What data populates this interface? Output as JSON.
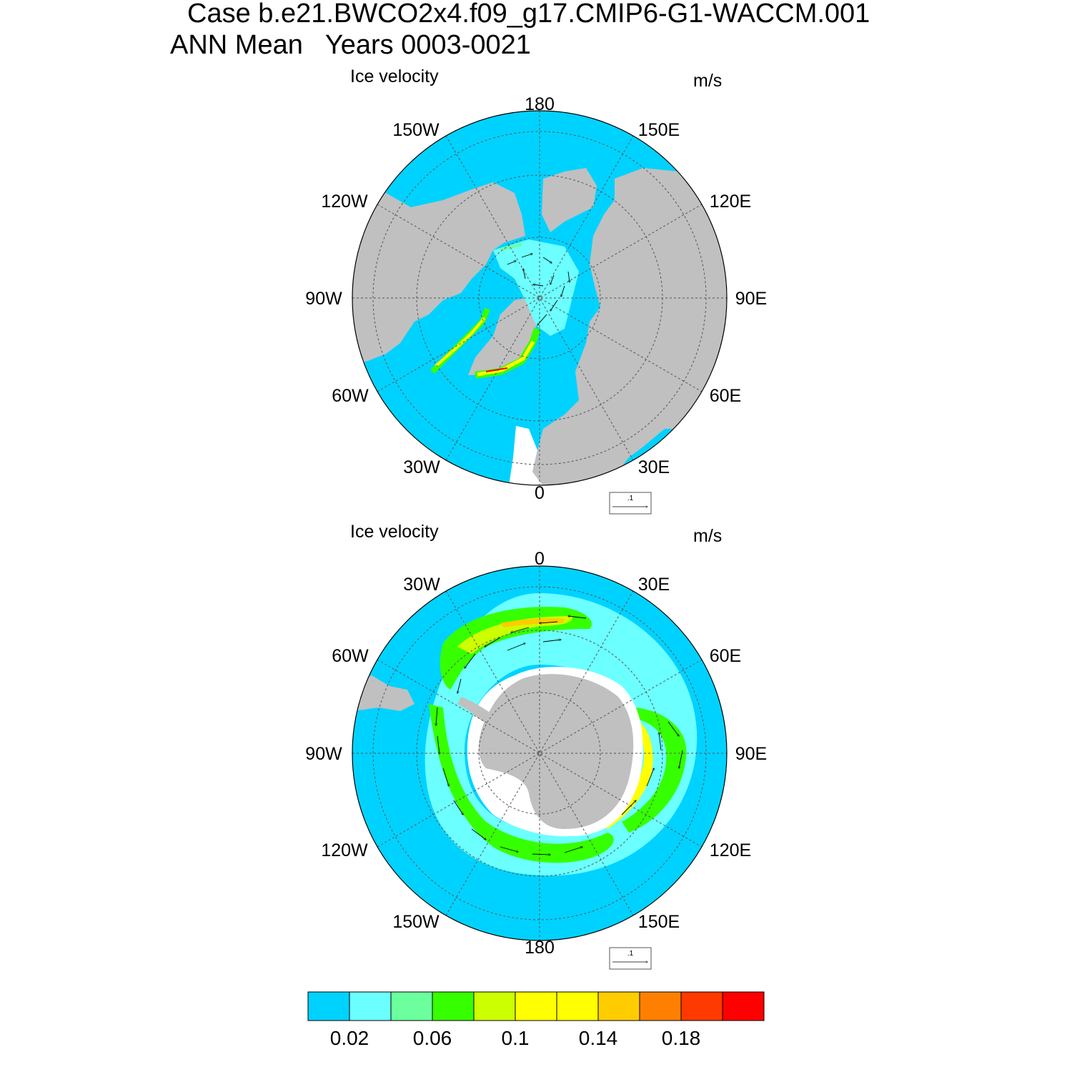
{
  "title": {
    "line1": "Case b.e21.BWCO2x4.f09_g17.CMIP6-G1-WACCM.001",
    "line2": "ANN Mean   Years 0003-0021"
  },
  "panels": [
    {
      "id": "north",
      "variable": "Ice velocity",
      "units": "m/s",
      "hemisphere": "NH",
      "lon_labels": [
        "180",
        "150E",
        "120E",
        "90E",
        "60E",
        "30E",
        "0",
        "30W",
        "60W",
        "90W",
        "120W",
        "150W"
      ],
      "ref_vector_label": ".1"
    },
    {
      "id": "south",
      "variable": "Ice velocity",
      "units": "m/s",
      "hemisphere": "SH",
      "lon_labels": [
        "0",
        "30E",
        "60E",
        "90E",
        "120E",
        "150E",
        "180",
        "150W",
        "120W",
        "90W",
        "60W",
        "30W"
      ],
      "ref_vector_label": ".1"
    }
  ],
  "colorbar": {
    "colors": [
      "#00d2ff",
      "#6cffff",
      "#6cff9e",
      "#36ff00",
      "#ccff00",
      "#ffff00",
      "#ffff00",
      "#ffcc00",
      "#ff8000",
      "#ff3a00",
      "#ff0000"
    ],
    "tick_labels": [
      "0.02",
      "0.06",
      "0.1",
      "0.14",
      "0.18"
    ]
  },
  "colors": {
    "ocean_low": "#00d2ff",
    "land": "#c0c0c0",
    "missing": "#ffffff"
  }
}
